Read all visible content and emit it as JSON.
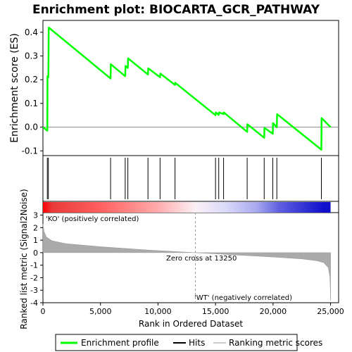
{
  "chart_data": {
    "type": "line",
    "title": "Enrichment plot: BIOCARTA_GCR_PATHWAY",
    "es_panel": {
      "ylabel": "Enrichment score (ES)",
      "ylim": [
        -0.12,
        0.45
      ],
      "yticks": [
        -0.1,
        0.0,
        0.1,
        0.2,
        0.3,
        0.4
      ],
      "ytick_labels": [
        "-0.1",
        "0.0",
        "0.1",
        "0.2",
        "0.3",
        "0.4"
      ],
      "series": [
        {
          "color": "#00ff00",
          "x": [
            0,
            380,
            400,
            470,
            500,
            5880,
            5900,
            7150,
            7180,
            7380,
            7400,
            9130,
            9150,
            10180,
            10200,
            11480,
            11500,
            15000,
            15020,
            15280,
            15300,
            15700,
            15720,
            17750,
            17770,
            19230,
            19250,
            19980,
            20000,
            20330,
            20350,
            24200,
            24220,
            25000
          ],
          "y": [
            0.0,
            -0.015,
            0.215,
            0.21,
            0.42,
            0.205,
            0.265,
            0.215,
            0.258,
            0.25,
            0.29,
            0.222,
            0.248,
            0.21,
            0.226,
            0.178,
            0.187,
            0.05,
            0.062,
            0.052,
            0.062,
            0.055,
            0.062,
            -0.02,
            0.012,
            -0.045,
            -0.003,
            -0.028,
            0.017,
            0.0,
            0.055,
            -0.095,
            0.038,
            0.0
          ]
        }
      ]
    },
    "hits": [
      380,
      470,
      5880,
      7150,
      7380,
      9130,
      10180,
      11480,
      15000,
      15280,
      15700,
      17750,
      19230,
      19980,
      20330,
      24200
    ],
    "metric_panel": {
      "ylabel": "Ranked list metric (Signal2Noise)",
      "ylim": [
        -4,
        3.2
      ],
      "yticks": [
        -4,
        -3,
        -2,
        -1,
        0,
        1,
        2,
        3
      ],
      "ytick_labels": [
        "-4",
        "-3",
        "-2",
        "-1",
        "0",
        "1",
        "2",
        "3"
      ],
      "profile_x": [
        0,
        100,
        300,
        800,
        2000,
        5000,
        9000,
        13250,
        17000,
        20000,
        22500,
        23800,
        24400,
        24800,
        24950,
        25000
      ],
      "profile_y": [
        2.3,
        1.7,
        1.25,
        0.95,
        0.72,
        0.48,
        0.22,
        0.0,
        -0.2,
        -0.35,
        -0.5,
        -0.65,
        -0.8,
        -1.2,
        -2.0,
        -3.8
      ],
      "fill_color": "#aaaaaa"
    },
    "xlabel": "Rank in Ordered Dataset",
    "xlim": [
      0,
      25700
    ],
    "xticks": [
      0,
      5000,
      10000,
      15000,
      20000,
      25000
    ],
    "xtick_labels": [
      "0",
      "5,000",
      "10,000",
      "15,000",
      "20,000",
      "25,000"
    ],
    "zero_cross": 13250,
    "annotations": {
      "positive": "'KO' (positively correlated)",
      "zero_cross": "Zero cross at 13250",
      "negative": "'WT' (negatively correlated)"
    },
    "colors": {
      "positive_label": "#cc0000",
      "negative_label": "#3333cc",
      "hit": "#000000"
    },
    "heatbar_stops": [
      {
        "x": 0,
        "color": "#ff0000"
      },
      {
        "x": 800,
        "color": "#e83a3a"
      },
      {
        "x": 5000,
        "color": "#ff6060"
      },
      {
        "x": 9800,
        "color": "#ffa8a8"
      },
      {
        "x": 13250,
        "color": "#fbf0f6"
      },
      {
        "x": 16000,
        "color": "#d8d8f8"
      },
      {
        "x": 18600,
        "color": "#a8a8f0"
      },
      {
        "x": 20500,
        "color": "#6060e0"
      },
      {
        "x": 24400,
        "color": "#1010cc"
      },
      {
        "x": 25000,
        "color": "#1010cc"
      }
    ],
    "legend": {
      "items": [
        {
          "label": "Enrichment profile",
          "color": "#00ff00",
          "kind": "line"
        },
        {
          "label": "Hits",
          "color": "#000000",
          "kind": "line"
        },
        {
          "label": "Ranking metric scores",
          "color": "#cccccc",
          "kind": "line"
        }
      ]
    }
  }
}
